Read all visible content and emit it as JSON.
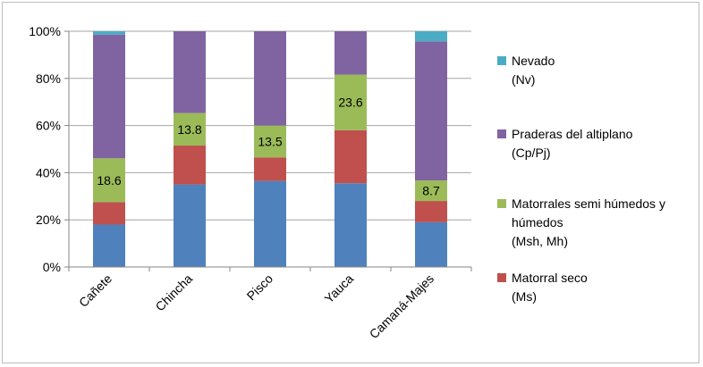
{
  "chart_data": {
    "type": "bar",
    "stacked": true,
    "percent_stacked": true,
    "categories": [
      "Cañete",
      "Chincha",
      "Pisco",
      "Yauca",
      "Camaná-Majes"
    ],
    "series": [
      {
        "name": "Matorral seco (Ms)",
        "legend_lines": [
          "Matorral seco",
          "(Ms)"
        ],
        "color": "#4f81bd",
        "values": [
          18.0,
          35.0,
          36.5,
          35.5,
          19.0
        ]
      },
      {
        "name": "Matorral seco (Ms)",
        "legend_lines": [
          "Matorral seco",
          "(Ms)"
        ],
        "color": "#c0504d",
        "values": [
          9.5,
          16.5,
          10.0,
          22.5,
          9.0
        ]
      },
      {
        "name": "Matorrales semi húmedos y húmedos (Msh, Mh)",
        "legend_lines": [
          "Matorrales semi húmedos y",
          "húmedos",
          "(Msh, Mh)"
        ],
        "color": "#9bbb59",
        "values": [
          18.6,
          13.8,
          13.5,
          23.6,
          8.7
        ]
      },
      {
        "name": "Praderas del altiplano (Cp/Pj)",
        "legend_lines": [
          "Praderas del altiplano",
          "(Cp/Pj)"
        ],
        "color": "#8064a2",
        "values": [
          52.5,
          34.7,
          40.0,
          18.4,
          59.0
        ]
      },
      {
        "name": "Nevado (Nv)",
        "legend_lines": [
          "Nevado",
          "(Nv)"
        ],
        "color": "#4bacc6",
        "values": [
          1.4,
          0.0,
          0.0,
          0.0,
          4.3
        ]
      }
    ],
    "data_labels": [
      "18.6",
      "13.8",
      "13.5",
      "23.6",
      "8.7"
    ],
    "y_ticks": [
      "0%",
      "20%",
      "40%",
      "60%",
      "80%",
      "100%"
    ],
    "ylim": [
      0,
      100
    ],
    "grid": true,
    "legend_position": "right",
    "legend_order": [
      4,
      3,
      2,
      1
    ]
  }
}
